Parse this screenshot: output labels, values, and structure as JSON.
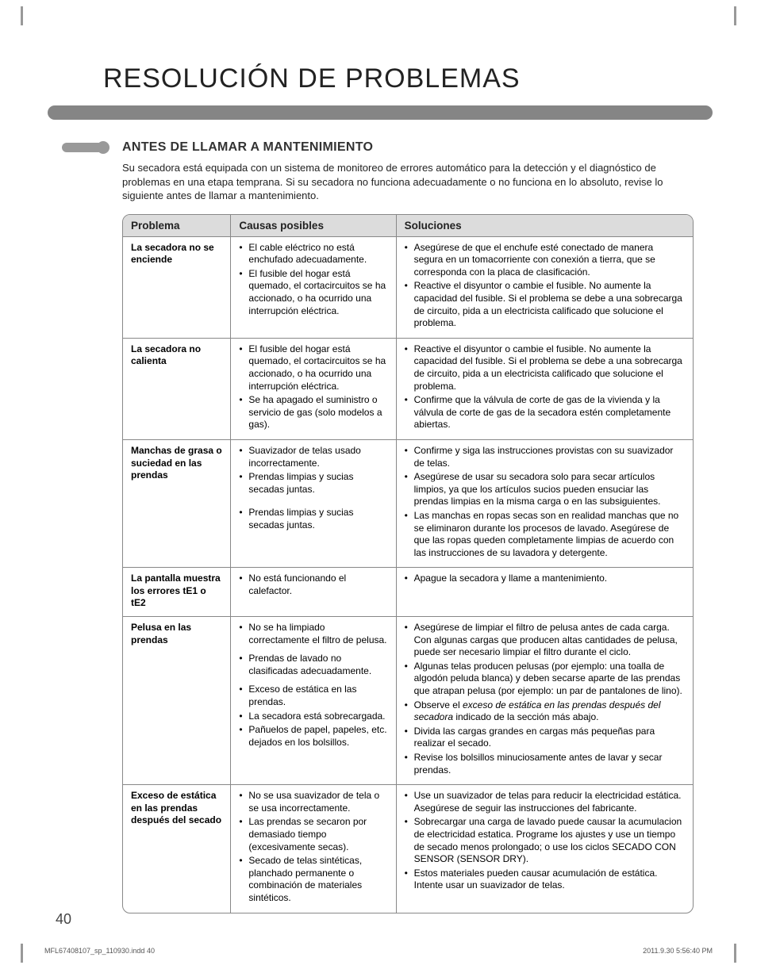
{
  "title": "RESOLUCIÓN DE PROBLEMAS",
  "section_title": "ANTES DE LLAMAR A MANTENIMIENTO",
  "intro": "Su secadora está equipada con un sistema de monitoreo de errores automático para la detección y el diagnóstico de problemas en una etapa temprana. Si su secadora no funciona adecuadamente o no funciona en lo absoluto, revise lo siguiente antes de llamar a mantenimiento.",
  "headers": {
    "problem": "Problema",
    "causes": "Causas posibles",
    "solutions": "Soluciones"
  },
  "rows": [
    {
      "problem": "La secadora no se enciende",
      "causes": [
        "El cable eléctrico no está enchufado adecuadamente.",
        "El fusible del hogar está quemado, el cortacircuitos se ha accionado, o ha ocurrido una interrupción eléctrica."
      ],
      "solutions": [
        "Asegúrese de que el enchufe esté conectado de manera segura en un tomacorriente con conexión a tierra, que se corresponda con la placa de clasificación.",
        "Reactive el disyuntor o cambie el fusible. No aumente la capacidad del fusible. Si el problema se debe a una sobrecarga de circuito, pida a un electricista calificado que solucione el problema."
      ]
    },
    {
      "problem": "La secadora no calienta",
      "causes": [
        "El fusible del hogar está quemado, el cortacircuitos se ha accionado, o ha ocurrido una interrupción eléctrica.",
        "Se ha apagado el suministro o servicio de gas (solo modelos a gas)."
      ],
      "solutions": [
        "Reactive el disyuntor o cambie el fusible. No aumente la capacidad del fusible. Si el problema se debe a una sobrecarga de circuito, pida a un electricista calificado que solucione el problema.",
        "Confirme que la válvula de corte de gas de la vivienda y la válvula de corte de gas de la secadora estén completamente abiertas."
      ]
    },
    {
      "problem": "Manchas de grasa o suciedad en las prendas",
      "causes": [
        "Suavizador de telas usado incorrectamente.",
        "Prendas limpias y sucias secadas juntas.",
        "Prendas limpias y sucias secadas juntas."
      ],
      "solutions": [
        "Confirme y siga las instrucciones provistas con su suavizador de telas.",
        "Asegúrese de usar su secadora solo para secar artículos limpios, ya que los artículos sucios pueden ensuciar las prendas limpias en la misma carga o en las subsiguientes.",
        "Las manchas en ropas secas son en realidad manchas que no se eliminaron durante los procesos de lavado. Asegúrese de que las ropas queden completamente limpias de acuerdo con las instrucciones de su lavadora y detergente."
      ]
    },
    {
      "problem": "La pantalla muestra los errores tE1 o tE2",
      "causes": [
        "No está funcionando el calefactor."
      ],
      "solutions": [
        "Apague la secadora y llame a mantenimiento."
      ]
    },
    {
      "problem": "Pelusa en las prendas",
      "causes": [
        "No se ha limpiado correctamente el filtro de pelusa.",
        "Prendas de lavado no clasificadas adecuadamente.",
        "Exceso de estática en las prendas.",
        "La secadora está sobrecargada.",
        "Pañuelos de papel, papeles, etc. dejados en los bolsillos."
      ],
      "solutions_html": [
        "Asegúrese de limpiar el filtro de pelusa antes de cada carga. Con algunas cargas que producen altas cantidades de pelusa, puede ser necesario limpiar el filtro durante el ciclo.",
        "Algunas telas producen pelusas (por ejemplo: una toalla de algodón peluda blanca) y deben secarse aparte de las prendas que atrapan pelusa (por ejemplo: un par de pantalones de lino).",
        "Observe el <em>exceso de estática en las prendas después del secadora</em> indicado de la sección más abajo.",
        "Divida las cargas grandes en cargas más pequeñas para realizar el secado.",
        "Revise los bolsillos minuciosamente antes de lavar y secar prendas."
      ]
    },
    {
      "problem": "Exceso de estática en las prendas después del secado",
      "causes": [
        "No se usa suavizador de tela o se usa incorrectamente.",
        "Las prendas se secaron por demasiado tiempo (excesivamente secas).",
        "Secado de telas sintéticas, planchado permanente o combinación de materiales sintéticos."
      ],
      "solutions": [
        "Use un suavizador de telas para reducir la electricidad estática. Asegúrese de seguir las instrucciones del fabricante.",
        "Sobrecargar una carga de lavado puede causar la acumulacion de electricidad estatica. Programe los ajustes y use un tiempo de secado menos prolongado; o use los ciclos SECADO CON SENSOR (SENSOR DRY).",
        "Estos materiales pueden causar acumulación de estática. Intente usar un suavizador de telas."
      ]
    }
  ],
  "page_number": "40",
  "footer_left": "MFL67408107_sp_110930.indd   40",
  "footer_right": "2011.9.30   5:56:40 PM"
}
